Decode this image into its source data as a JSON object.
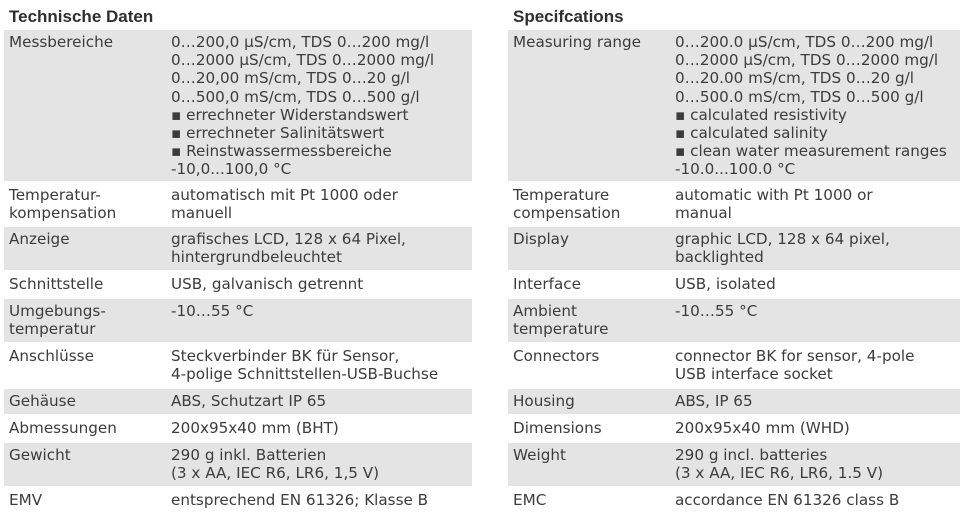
{
  "german": {
    "title": "Technische Daten",
    "rows": [
      {
        "label": "Messbereiche",
        "value": "0…200,0 µS/cm, TDS 0…200 mg/l\n0…2000 µS/cm, TDS 0…2000 mg/l\n0…20,00 mS/cm, TDS 0…20 g/l\n0…500,0 mS/cm, TDS 0…500 g/l\n▪ errechneter Widerstandswert\n▪ errechneter Salinitätswert\n▪ Reinstwassermessbereiche\n-10,0...100,0 °C"
      },
      {
        "label": "Temperatur-\nkompensation",
        "value": "automatisch mit Pt 1000 oder\nmanuell"
      },
      {
        "label": "Anzeige",
        "value": "grafisches LCD, 128 x 64 Pixel,\nhintergrundbeleuchtet"
      },
      {
        "label": "Schnittstelle",
        "value": "USB, galvanisch getrennt"
      },
      {
        "label": "Umgebungs-\ntemperatur",
        "value": "-10…55 °C"
      },
      {
        "label": "Anschlüsse",
        "value": "Steckverbinder BK für Sensor,\n4-polige Schnittstellen-USB-Buchse"
      },
      {
        "label": "Gehäuse",
        "value": "ABS, Schutzart IP 65"
      },
      {
        "label": "Abmessungen",
        "value": "200x95x40 mm (BHT)"
      },
      {
        "label": "Gewicht",
        "value": "290 g inkl. Batterien\n(3 x AA, IEC R6, LR6, 1,5 V)"
      },
      {
        "label": "EMV",
        "value": "entsprechend EN 61326; Klasse B"
      }
    ]
  },
  "english": {
    "title": "Specifcations",
    "rows": [
      {
        "label": "Measuring range",
        "value": "0…200.0 µS/cm, TDS 0…200 mg/l\n0…2000 µS/cm, TDS 0…2000 mg/l\n0…20.00 mS/cm, TDS 0…20 g/l\n0…500.0 mS/cm, TDS 0…500 g/l\n▪ calculated resistivity\n▪ calculated salinity\n▪ clean water measurement ranges\n-10.0...100.0 °C"
      },
      {
        "label": "Temperature\ncompensation",
        "value": "automatic with Pt 1000 or\nmanual"
      },
      {
        "label": "Display",
        "value": "graphic LCD, 128 x 64 pixel,\nbacklighted"
      },
      {
        "label": "Interface",
        "value": "USB, isolated"
      },
      {
        "label": "Ambient\ntemperature",
        "value": "-10…55 °C"
      },
      {
        "label": "Connectors",
        "value": "connector BK for sensor, 4-pole\nUSB interface socket"
      },
      {
        "label": "Housing",
        "value": "ABS, IP 65"
      },
      {
        "label": "Dimensions",
        "value": "200x95x40 mm (WHD)"
      },
      {
        "label": "Weight",
        "value": "290 g incl. batteries\n(3 x AA, IEC R6, LR6, 1.5 V)"
      },
      {
        "label": "EMC",
        "value": "accordance EN 61326 class B"
      }
    ]
  },
  "colors": {
    "row_shade": "#e4e4e4",
    "text": "#3c3c3c",
    "heading": "#2f2f2f"
  }
}
